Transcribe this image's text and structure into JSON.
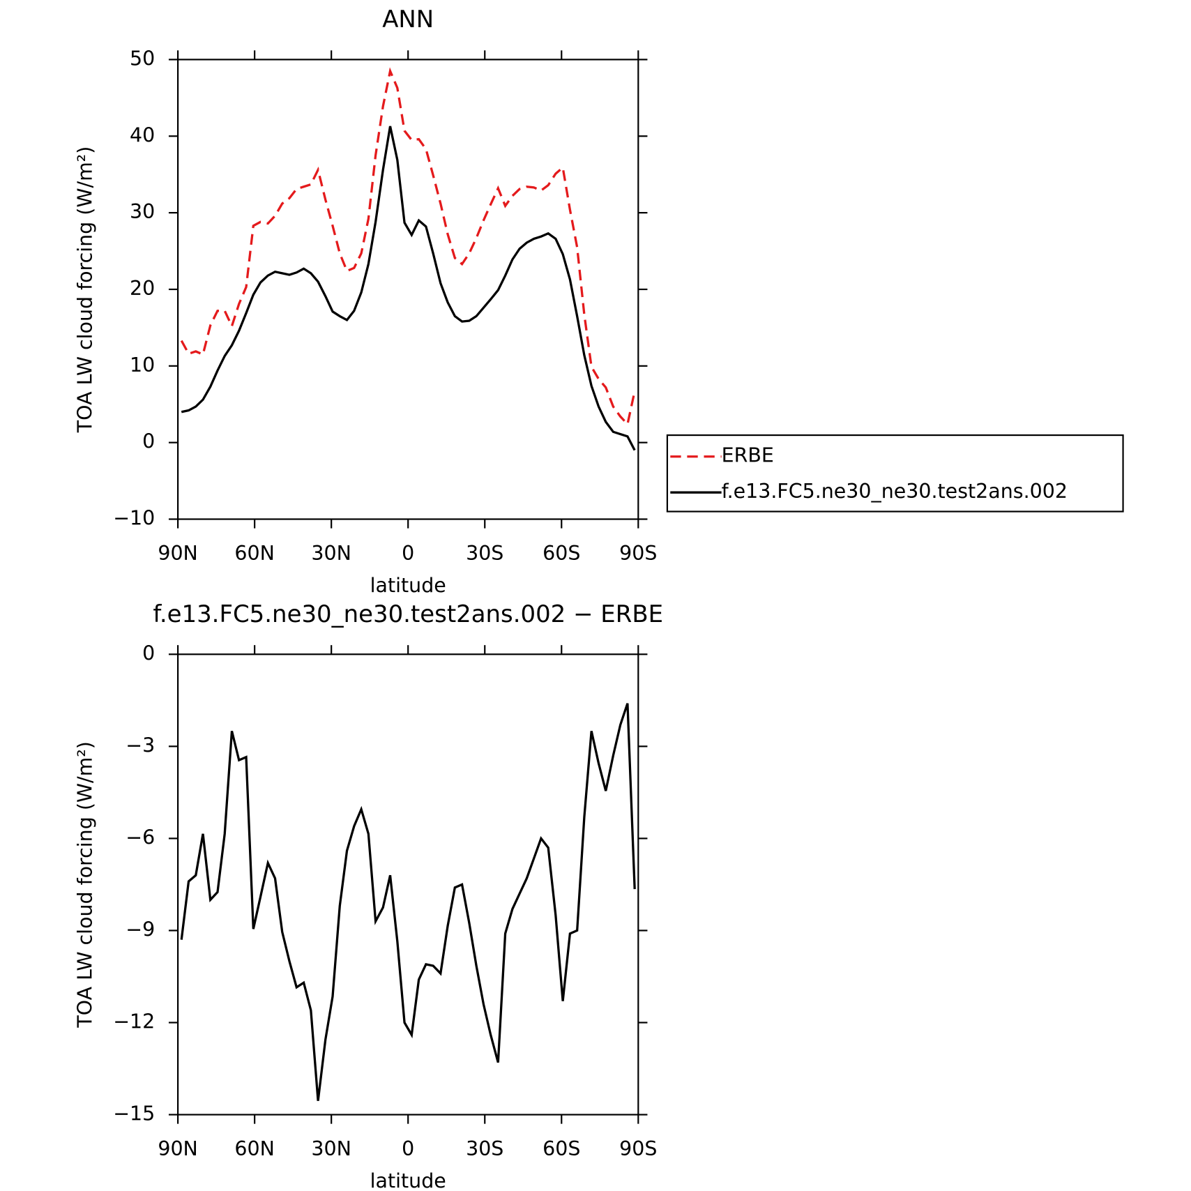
{
  "chart_data": [
    {
      "type": "line",
      "title": "ANN",
      "xlabel": "latitude",
      "ylabel": "TOA LW cloud forcing (W/m²)",
      "x": [
        88.6,
        85.8,
        83.0,
        80.2,
        77.3,
        74.5,
        71.7,
        68.9,
        66.1,
        63.3,
        60.5,
        57.7,
        54.8,
        52.0,
        49.2,
        46.4,
        43.6,
        40.8,
        38.0,
        35.2,
        32.3,
        29.5,
        26.7,
        23.9,
        21.1,
        18.3,
        15.5,
        12.7,
        9.8,
        7.0,
        4.2,
        1.4,
        -1.4,
        -4.2,
        -7.0,
        -9.8,
        -12.7,
        -15.5,
        -18.3,
        -21.1,
        -23.9,
        -26.7,
        -29.5,
        -32.3,
        -35.2,
        -38.0,
        -40.8,
        -43.6,
        -46.4,
        -49.2,
        -52.0,
        -54.8,
        -57.7,
        -60.5,
        -63.3,
        -66.1,
        -68.9,
        -71.7,
        -74.5,
        -77.3,
        -80.2,
        -83.0,
        -85.8,
        -88.6
      ],
      "xlim": [
        90,
        -90
      ],
      "xticks": [
        {
          "value": 90,
          "label": "90N"
        },
        {
          "value": 60,
          "label": "60N"
        },
        {
          "value": 30,
          "label": "30N"
        },
        0,
        {
          "value": -30,
          "label": "30S"
        },
        {
          "value": -60,
          "label": "60S"
        },
        {
          "value": -90,
          "label": "90S"
        }
      ],
      "ylim": [
        -10,
        50
      ],
      "yticks": [
        {
          "value": -10,
          "label": "−10"
        },
        0,
        10,
        20,
        30,
        40,
        50
      ],
      "legend": "right",
      "series": [
        {
          "name": "ERBE",
          "color": "#e41a1c",
          "dash": true,
          "values": [
            13.3,
            11.6,
            11.9,
            11.5,
            15.3,
            17.2,
            17.2,
            15.2,
            18.1,
            20.3,
            28.3,
            28.8,
            28.6,
            29.6,
            31.2,
            31.9,
            33.1,
            33.4,
            33.7,
            35.6,
            31.7,
            28.3,
            24.7,
            22.4,
            22.8,
            24.7,
            29.2,
            37.5,
            43.9,
            48.5,
            46.3,
            40.7,
            39.5,
            39.6,
            38.3,
            34.9,
            31.2,
            27.2,
            24.1,
            23.3,
            24.7,
            26.7,
            29.0,
            31.1,
            33.2,
            30.9,
            32.2,
            33.1,
            33.4,
            33.3,
            32.9,
            33.6,
            35.1,
            35.9,
            30.4,
            25.5,
            16.7,
            9.9,
            8.3,
            7.2,
            4.7,
            3.4,
            2.4,
            6.7
          ]
        },
        {
          "name": "f.e13.FC5.ne30_ne30.test2ans.002",
          "color": "#000000",
          "dash": false,
          "values": [
            4.0,
            4.2,
            4.7,
            5.6,
            7.3,
            9.4,
            11.3,
            12.7,
            14.6,
            16.9,
            19.3,
            20.9,
            21.8,
            22.3,
            22.1,
            21.9,
            22.2,
            22.7,
            22.1,
            21.0,
            19.1,
            17.1,
            16.5,
            16.0,
            17.2,
            19.6,
            23.3,
            28.8,
            35.6,
            41.3,
            36.9,
            28.7,
            27.1,
            29.0,
            28.2,
            24.7,
            20.8,
            18.3,
            16.5,
            15.8,
            15.9,
            16.5,
            17.6,
            18.7,
            19.9,
            21.8,
            23.9,
            25.3,
            26.1,
            26.6,
            26.9,
            27.3,
            26.6,
            24.6,
            21.3,
            16.5,
            11.4,
            7.4,
            4.7,
            2.7,
            1.4,
            1.1,
            0.8,
            -1.0
          ]
        }
      ]
    },
    {
      "type": "line",
      "title": "f.e13.FC5.ne30_ne30.test2ans.002 − ERBE",
      "xlabel": "latitude",
      "ylabel": "TOA LW cloud forcing (W/m²)",
      "x": [
        88.6,
        85.8,
        83.0,
        80.2,
        77.3,
        74.5,
        71.7,
        68.9,
        66.1,
        63.3,
        60.5,
        57.7,
        54.8,
        52.0,
        49.2,
        46.4,
        43.6,
        40.8,
        38.0,
        35.2,
        32.3,
        29.5,
        26.7,
        23.9,
        21.1,
        18.3,
        15.5,
        12.7,
        9.8,
        7.0,
        4.2,
        1.4,
        -1.4,
        -4.2,
        -7.0,
        -9.8,
        -12.7,
        -15.5,
        -18.3,
        -21.1,
        -23.9,
        -26.7,
        -29.5,
        -32.3,
        -35.2,
        -38.0,
        -40.8,
        -43.6,
        -46.4,
        -49.2,
        -52.0,
        -54.8,
        -57.7,
        -60.5,
        -63.3,
        -66.1,
        -68.9,
        -71.7,
        -74.5,
        -77.3,
        -80.2,
        -83.0,
        -85.8,
        -88.6
      ],
      "xlim": [
        90,
        -90
      ],
      "xticks": [
        {
          "value": 90,
          "label": "90N"
        },
        {
          "value": 60,
          "label": "60N"
        },
        {
          "value": 30,
          "label": "30N"
        },
        0,
        {
          "value": -30,
          "label": "30S"
        },
        {
          "value": -60,
          "label": "60S"
        },
        {
          "value": -90,
          "label": "90S"
        }
      ],
      "ylim": [
        -15,
        0
      ],
      "yticks": [
        {
          "value": -15,
          "label": "−15"
        },
        {
          "value": -12,
          "label": "−12"
        },
        {
          "value": -9,
          "label": "−9"
        },
        {
          "value": -6,
          "label": "−6"
        },
        {
          "value": -3,
          "label": "−3"
        },
        0
      ],
      "series": [
        {
          "color": "#000000",
          "dash": false,
          "values": [
            -9.3,
            -7.4,
            -7.2,
            -5.85,
            -8.0,
            -7.75,
            -5.85,
            -2.5,
            -3.45,
            -3.35,
            -8.95,
            -7.9,
            -6.8,
            -7.3,
            -9.05,
            -10.0,
            -10.85,
            -10.7,
            -11.6,
            -14.55,
            -12.55,
            -11.15,
            -8.2,
            -6.4,
            -5.6,
            -5.05,
            -5.85,
            -8.7,
            -8.25,
            -7.2,
            -9.35,
            -12.0,
            -12.4,
            -10.6,
            -10.1,
            -10.15,
            -10.4,
            -8.85,
            -7.6,
            -7.5,
            -8.75,
            -10.15,
            -11.4,
            -12.4,
            -13.3,
            -9.1,
            -8.3,
            -7.8,
            -7.3,
            -6.65,
            -6.0,
            -6.3,
            -8.5,
            -11.3,
            -9.1,
            -9.0,
            -5.3,
            -2.5,
            -3.55,
            -4.45,
            -3.3,
            -2.3,
            -1.6,
            -7.65
          ]
        }
      ]
    }
  ]
}
